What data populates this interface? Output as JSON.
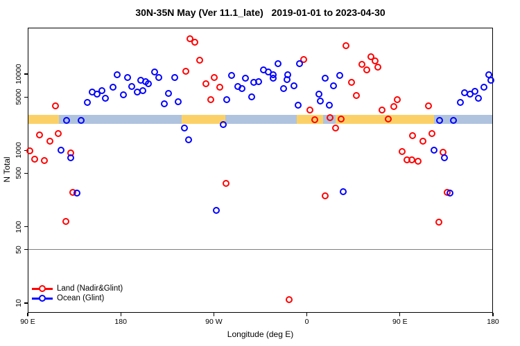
{
  "title": "30N-35N May (Ver 11.1_late)   2019-01-01 to 2023-04-30",
  "colors": {
    "land_point": "#FF0000",
    "ocean_point": "#0000FF",
    "land_band": "#FBD167",
    "ocean_band": "#AFC3DF",
    "reference_line": "#7F7F7F",
    "axis": "#000000"
  },
  "chart_data": {
    "type": "scatter",
    "title": "30N-35N May (Ver 11.1_late)   2019-01-01 to 2023-04-30",
    "xlabel": "Longitude (deg E)",
    "ylabel": "N Total",
    "x_axis": {
      "note": "pos = degrees eastward along axis starting at 90E; axis wraps 90E>180>90W>0>90E>180",
      "range": [
        0,
        450
      ],
      "ticks": [
        {
          "pos": 0,
          "label": "90 E"
        },
        {
          "pos": 90,
          "label": "180"
        },
        {
          "pos": 180,
          "label": "90 W"
        },
        {
          "pos": 270,
          "label": "0"
        },
        {
          "pos": 360,
          "label": "90 E"
        },
        {
          "pos": 450,
          "label": "180"
        }
      ]
    },
    "y_axis": {
      "scale": "log10",
      "range_log10": [
        0.872,
        4.607
      ],
      "ticks": [
        {
          "value": 10000,
          "label": "10000"
        },
        {
          "value": 5000,
          "label": "5000"
        },
        {
          "value": 1000,
          "label": "1000"
        },
        {
          "value": 500,
          "label": "500"
        },
        {
          "value": 100,
          "label": "100"
        },
        {
          "value": 50,
          "label": "50"
        },
        {
          "value": 10,
          "label": "10"
        }
      ]
    },
    "reference_line": {
      "y": 50
    },
    "surface_band": {
      "n_range": [
        2220,
        2920
      ],
      "segments": [
        {
          "surface": "land",
          "from": 0,
          "to": 30.2
        },
        {
          "surface": "ocean",
          "from": 30.2,
          "to": 149.1
        },
        {
          "surface": "land",
          "from": 149.1,
          "to": 191.4
        },
        {
          "surface": "ocean",
          "from": 191.4,
          "to": 260.5
        },
        {
          "surface": "land",
          "from": 260.5,
          "to": 285.4
        },
        {
          "surface": "ocean",
          "from": 285.4,
          "to": 297.5
        },
        {
          "surface": "land",
          "from": 297.5,
          "to": 392.9
        },
        {
          "surface": "ocean",
          "from": 392.9,
          "to": 450
        }
      ]
    },
    "legend": {
      "position": "bottom-left"
    },
    "series": [
      {
        "name": "Land (Nadir&Glint)",
        "color_key": "land_point",
        "points": [
          [
            26.9,
            3800
          ],
          [
            157.2,
            29000
          ],
          [
            161.9,
            26000
          ],
          [
            166.5,
            15200
          ],
          [
            153.1,
            10900
          ],
          [
            172.6,
            7470
          ],
          [
            180.6,
            9010
          ],
          [
            186,
            6730
          ],
          [
            177.3,
            4620
          ],
          [
            266.6,
            15500
          ],
          [
            307.6,
            23500
          ],
          [
            331.7,
            16900
          ],
          [
            323,
            13400
          ],
          [
            327.7,
            11300
          ],
          [
            335.8,
            14900
          ],
          [
            338.5,
            12300
          ],
          [
            313,
            7780
          ],
          [
            317.6,
            5230
          ],
          [
            272.7,
            3380
          ],
          [
            277.4,
            2520
          ],
          [
            292.1,
            2680
          ],
          [
            302.9,
            2580
          ],
          [
            297.5,
            1960
          ],
          [
            287.4,
            254
          ],
          [
            357.3,
            4620
          ],
          [
            342.5,
            3380
          ],
          [
            348.5,
            2580
          ],
          [
            354,
            3750
          ],
          [
            387.5,
            3830
          ],
          [
            372,
            1560
          ],
          [
            390.9,
            1660
          ],
          [
            382.1,
            1320
          ],
          [
            362,
            966
          ],
          [
            401.6,
            946
          ],
          [
            366.7,
            752
          ],
          [
            371.4,
            752
          ],
          [
            377.4,
            721
          ],
          [
            405.6,
            282
          ],
          [
            397.6,
            115
          ],
          [
            36.9,
            117
          ],
          [
            43.7,
            282
          ],
          [
            11.4,
            1590
          ],
          [
            29.6,
            1660
          ],
          [
            21.5,
            1320
          ],
          [
            2,
            986
          ],
          [
            6.7,
            767
          ],
          [
            16.1,
            736
          ],
          [
            41.6,
            927
          ],
          [
            252.5,
            11
          ],
          [
            192.1,
            370
          ]
        ]
      },
      {
        "name": "Ocean (Glint)",
        "color_key": "ocean_point",
        "points": [
          [
            57.8,
            4250
          ],
          [
            62.5,
            5810
          ],
          [
            67.2,
            5460
          ],
          [
            71.9,
            6060
          ],
          [
            75.2,
            4820
          ],
          [
            82.6,
            6730
          ],
          [
            86.6,
            9790
          ],
          [
            92.7,
            5350
          ],
          [
            96.7,
            9010
          ],
          [
            100.7,
            6870
          ],
          [
            106.1,
            5810
          ],
          [
            111.5,
            6060
          ],
          [
            109.5,
            8280
          ],
          [
            114.2,
            7950
          ],
          [
            116.9,
            7470
          ],
          [
            122.9,
            10600
          ],
          [
            126.9,
            9010
          ],
          [
            142.4,
            9010
          ],
          [
            136.3,
            5570
          ],
          [
            145.7,
            4340
          ],
          [
            132.3,
            4070
          ],
          [
            197.4,
            9590
          ],
          [
            210.9,
            8830
          ],
          [
            218.9,
            7780
          ],
          [
            203.5,
            6870
          ],
          [
            207.5,
            6460
          ],
          [
            192.7,
            4620
          ],
          [
            216.9,
            5020
          ],
          [
            228.3,
            11300
          ],
          [
            232.4,
            10600
          ],
          [
            242.4,
            13700
          ],
          [
            237.1,
            9790
          ],
          [
            237.1,
            8830
          ],
          [
            223.6,
            7950
          ],
          [
            251.8,
            9790
          ],
          [
            250.5,
            8460
          ],
          [
            257.2,
            7010
          ],
          [
            247.8,
            6460
          ],
          [
            262.6,
            13700
          ],
          [
            287.4,
            8830
          ],
          [
            301.5,
            9590
          ],
          [
            295.5,
            7010
          ],
          [
            281.4,
            5460
          ],
          [
            282.7,
            4430
          ],
          [
            291.4,
            3910
          ],
          [
            261.3,
            3910
          ],
          [
            422.4,
            5690
          ],
          [
            427.8,
            5460
          ],
          [
            432.5,
            5930
          ],
          [
            435.8,
            4820
          ],
          [
            441.2,
            6730
          ],
          [
            445.9,
            9790
          ],
          [
            447.9,
            8280
          ],
          [
            418.4,
            4250
          ],
          [
            37.6,
            2470
          ],
          [
            51.7,
            2470
          ],
          [
            151.8,
            1960
          ],
          [
            189.4,
            2180
          ],
          [
            155.8,
            1380
          ],
          [
            182.7,
            164
          ],
          [
            47.7,
            276
          ],
          [
            304.9,
            288
          ],
          [
            398.2,
            2470
          ],
          [
            411.6,
            2470
          ],
          [
            392.9,
            1010
          ],
          [
            402.9,
            800
          ],
          [
            408.3,
            276
          ],
          [
            32.2,
            1010
          ],
          [
            41.6,
            800
          ]
        ]
      }
    ]
  }
}
